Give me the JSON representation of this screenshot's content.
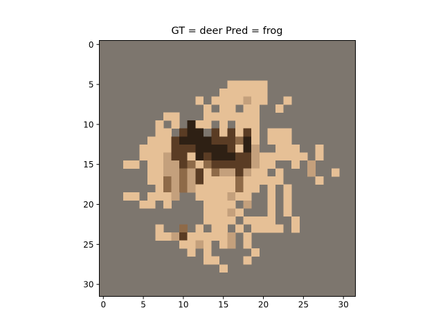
{
  "chart_data": {
    "type": "heatmap",
    "title": "GT = deer Pred = frog",
    "xlabel": "",
    "ylabel": "",
    "grid": false,
    "image_size": [
      32,
      32
    ],
    "xlim": [
      -0.5,
      31.5
    ],
    "ylim": [
      31.5,
      -0.5
    ],
    "xticks": [
      0,
      5,
      10,
      15,
      20,
      25,
      30
    ],
    "yticks": [
      0,
      5,
      10,
      15,
      20,
      25,
      30
    ],
    "colors": {
      "background": "#7d766e",
      "light": "#e6c096",
      "mid": "#c4a07c",
      "shadow": "#8e6a48",
      "dark": "#5a3c24",
      "darkest": "#2e2014"
    },
    "pixel_rows": [
      {
        "y": 5,
        "runs": [
          [
            16,
            16,
            "light"
          ],
          [
            17,
            20,
            "light"
          ]
        ]
      },
      {
        "y": 6,
        "runs": [
          [
            15,
            20,
            "light"
          ]
        ]
      },
      {
        "y": 7,
        "runs": [
          [
            12,
            12,
            "light"
          ],
          [
            14,
            17,
            "light"
          ],
          [
            18,
            18,
            "mid"
          ],
          [
            19,
            20,
            "light"
          ],
          [
            23,
            23,
            "light"
          ]
        ]
      },
      {
        "y": 8,
        "runs": [
          [
            13,
            13,
            "light"
          ],
          [
            15,
            16,
            "light"
          ],
          [
            18,
            19,
            "light"
          ],
          [
            22,
            22,
            "light"
          ]
        ]
      },
      {
        "y": 9,
        "runs": [
          [
            8,
            9,
            "light"
          ],
          [
            13,
            16,
            "light"
          ],
          [
            17,
            19,
            "light"
          ]
        ]
      },
      {
        "y": 10,
        "runs": [
          [
            7,
            7,
            "light"
          ],
          [
            9,
            9,
            "light"
          ],
          [
            11,
            11,
            "darkest"
          ],
          [
            12,
            13,
            "light"
          ],
          [
            15,
            15,
            "light"
          ],
          [
            17,
            19,
            "light"
          ]
        ]
      },
      {
        "y": 11,
        "runs": [
          [
            7,
            8,
            "light"
          ],
          [
            10,
            10,
            "dark"
          ],
          [
            11,
            12,
            "darkest"
          ],
          [
            14,
            14,
            "dark"
          ],
          [
            15,
            15,
            "light"
          ],
          [
            16,
            16,
            "dark"
          ],
          [
            17,
            17,
            "light"
          ],
          [
            18,
            18,
            "dark"
          ],
          [
            19,
            19,
            "light"
          ],
          [
            21,
            21,
            "light"
          ],
          [
            22,
            23,
            "light"
          ]
        ]
      },
      {
        "y": 12,
        "runs": [
          [
            6,
            8,
            "light"
          ],
          [
            9,
            9,
            "dark"
          ],
          [
            10,
            13,
            "darkest"
          ],
          [
            14,
            16,
            "dark"
          ],
          [
            17,
            17,
            "shadow"
          ],
          [
            18,
            18,
            "darkest"
          ],
          [
            19,
            19,
            "light"
          ],
          [
            21,
            23,
            "light"
          ]
        ]
      },
      {
        "y": 13,
        "runs": [
          [
            5,
            8,
            "light"
          ],
          [
            9,
            11,
            "dark"
          ],
          [
            12,
            12,
            "darkest"
          ],
          [
            13,
            15,
            "darkest"
          ],
          [
            16,
            16,
            "dark"
          ],
          [
            17,
            17,
            "light"
          ],
          [
            18,
            18,
            "darkest"
          ],
          [
            19,
            19,
            "mid"
          ],
          [
            22,
            24,
            "light"
          ],
          [
            27,
            27,
            "light"
          ]
        ]
      },
      {
        "y": 14,
        "runs": [
          [
            5,
            7,
            "light"
          ],
          [
            8,
            8,
            "mid"
          ],
          [
            9,
            10,
            "dark"
          ],
          [
            11,
            11,
            "light"
          ],
          [
            12,
            12,
            "darkest"
          ],
          [
            13,
            13,
            "dark"
          ],
          [
            14,
            16,
            "darkest"
          ],
          [
            17,
            18,
            "dark"
          ],
          [
            19,
            19,
            "mid"
          ],
          [
            20,
            20,
            "light"
          ],
          [
            21,
            21,
            "light"
          ],
          [
            22,
            23,
            "light"
          ],
          [
            24,
            25,
            "light"
          ],
          [
            27,
            27,
            "light"
          ]
        ]
      },
      {
        "y": 15,
        "runs": [
          [
            3,
            4,
            "light"
          ],
          [
            6,
            7,
            "light"
          ],
          [
            8,
            9,
            "mid"
          ],
          [
            10,
            10,
            "dark"
          ],
          [
            11,
            11,
            "shadow"
          ],
          [
            12,
            12,
            "light"
          ],
          [
            13,
            13,
            "shadow"
          ],
          [
            14,
            18,
            "dark"
          ],
          [
            19,
            19,
            "mid"
          ],
          [
            20,
            21,
            "light"
          ],
          [
            24,
            24,
            "light"
          ],
          [
            26,
            26,
            "mid"
          ]
        ]
      },
      {
        "y": 16,
        "runs": [
          [
            6,
            7,
            "light"
          ],
          [
            8,
            8,
            "mid"
          ],
          [
            9,
            9,
            "mid"
          ],
          [
            10,
            10,
            "shadow"
          ],
          [
            11,
            11,
            "mid"
          ],
          [
            12,
            12,
            "dark"
          ],
          [
            13,
            13,
            "light"
          ],
          [
            14,
            14,
            "shadow"
          ],
          [
            15,
            15,
            "mid"
          ],
          [
            16,
            16,
            "mid"
          ],
          [
            17,
            17,
            "dark"
          ],
          [
            18,
            18,
            "mid"
          ],
          [
            19,
            20,
            "light"
          ],
          [
            22,
            22,
            "light"
          ],
          [
            26,
            26,
            "mid"
          ],
          [
            29,
            29,
            "light"
          ]
        ]
      },
      {
        "y": 17,
        "runs": [
          [
            6,
            7,
            "light"
          ],
          [
            8,
            8,
            "shadow"
          ],
          [
            9,
            9,
            "mid"
          ],
          [
            10,
            10,
            "shadow"
          ],
          [
            11,
            11,
            "mid"
          ],
          [
            12,
            12,
            "dark"
          ],
          [
            13,
            16,
            "light"
          ],
          [
            17,
            17,
            "shadow"
          ],
          [
            18,
            18,
            "light"
          ],
          [
            19,
            22,
            "light"
          ],
          [
            27,
            27,
            "light"
          ]
        ]
      },
      {
        "y": 18,
        "runs": [
          [
            7,
            7,
            "light"
          ],
          [
            8,
            8,
            "shadow"
          ],
          [
            9,
            9,
            "mid"
          ],
          [
            10,
            10,
            "shadow"
          ],
          [
            11,
            11,
            "mid"
          ],
          [
            12,
            16,
            "light"
          ],
          [
            17,
            17,
            "shadow"
          ],
          [
            18,
            19,
            "light"
          ],
          [
            21,
            21,
            "light"
          ],
          [
            23,
            23,
            "light"
          ]
        ]
      },
      {
        "y": 19,
        "runs": [
          [
            3,
            4,
            "light"
          ],
          [
            6,
            8,
            "light"
          ],
          [
            9,
            9,
            "mid"
          ],
          [
            12,
            15,
            "light"
          ],
          [
            16,
            16,
            "mid"
          ],
          [
            17,
            18,
            "light"
          ],
          [
            21,
            21,
            "light"
          ],
          [
            23,
            23,
            "light"
          ]
        ]
      },
      {
        "y": 20,
        "runs": [
          [
            5,
            6,
            "light"
          ],
          [
            8,
            8,
            "light"
          ],
          [
            13,
            16,
            "light"
          ],
          [
            18,
            18,
            "mid"
          ],
          [
            21,
            21,
            "light"
          ],
          [
            23,
            23,
            "light"
          ]
        ]
      },
      {
        "y": 21,
        "runs": [
          [
            13,
            15,
            "light"
          ],
          [
            16,
            16,
            "mid"
          ],
          [
            17,
            17,
            "light"
          ],
          [
            21,
            21,
            "light"
          ],
          [
            23,
            23,
            "light"
          ]
        ]
      },
      {
        "y": 22,
        "runs": [
          [
            13,
            16,
            "light"
          ],
          [
            18,
            21,
            "light"
          ],
          [
            24,
            24,
            "light"
          ]
        ]
      },
      {
        "y": 23,
        "runs": [
          [
            7,
            7,
            "light"
          ],
          [
            10,
            10,
            "shadow"
          ],
          [
            12,
            12,
            "light"
          ],
          [
            14,
            15,
            "light"
          ],
          [
            17,
            17,
            "light"
          ],
          [
            19,
            22,
            "light"
          ],
          [
            24,
            24,
            "light"
          ]
        ]
      },
      {
        "y": 24,
        "runs": [
          [
            7,
            8,
            "light"
          ],
          [
            9,
            9,
            "mid"
          ],
          [
            10,
            10,
            "dark"
          ],
          [
            11,
            11,
            "light"
          ],
          [
            12,
            15,
            "light"
          ],
          [
            16,
            16,
            "mid"
          ],
          [
            18,
            18,
            "light"
          ]
        ]
      },
      {
        "y": 25,
        "runs": [
          [
            10,
            11,
            "light"
          ],
          [
            12,
            12,
            "mid"
          ],
          [
            13,
            13,
            "light"
          ],
          [
            15,
            15,
            "light"
          ],
          [
            16,
            16,
            "mid"
          ],
          [
            18,
            18,
            "light"
          ]
        ]
      },
      {
        "y": 26,
        "runs": [
          [
            11,
            11,
            "light"
          ],
          [
            13,
            13,
            "light"
          ],
          [
            19,
            19,
            "light"
          ]
        ]
      },
      {
        "y": 27,
        "runs": [
          [
            13,
            14,
            "light"
          ],
          [
            18,
            18,
            "light"
          ]
        ]
      },
      {
        "y": 28,
        "runs": [
          [
            15,
            15,
            "light"
          ]
        ]
      }
    ]
  }
}
